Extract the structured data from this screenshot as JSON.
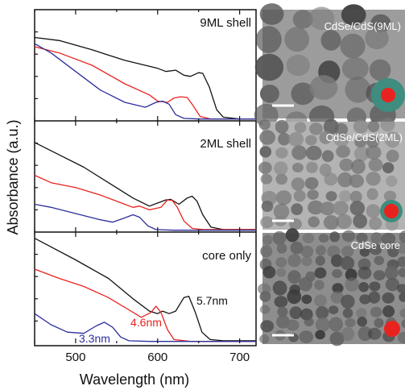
{
  "chart_data": {
    "type": "line",
    "xlabel": "Wavelength (nm)",
    "ylabel": "Absorbance (a.u.)",
    "xlim": [
      450,
      720
    ],
    "x_ticks": [
      500,
      600,
      700
    ],
    "colors": {
      "black": "#111111",
      "red": "#e8231f",
      "blue": "#2b2f9a"
    },
    "panels": [
      {
        "label": "9ML shell",
        "series": [
          {
            "color": "black",
            "points": [
              [
                450,
                1.35
              ],
              [
                480,
                1.3
              ],
              [
                520,
                1.15
              ],
              [
                560,
                0.98
              ],
              [
                600,
                0.85
              ],
              [
                610,
                0.8
              ],
              [
                622,
                0.82
              ],
              [
                632,
                0.74
              ],
              [
                640,
                0.72
              ],
              [
                650,
                0.78
              ],
              [
                655,
                0.77
              ],
              [
                663,
                0.55
              ],
              [
                672,
                0.18
              ],
              [
                680,
                0.06
              ],
              [
                700,
                0.03
              ],
              [
                720,
                0.03
              ]
            ]
          },
          {
            "color": "red",
            "points": [
              [
                450,
                1.2
              ],
              [
                480,
                1.1
              ],
              [
                520,
                0.9
              ],
              [
                560,
                0.6
              ],
              [
                590,
                0.42
              ],
              [
                600,
                0.32
              ],
              [
                612,
                0.3
              ],
              [
                620,
                0.37
              ],
              [
                628,
                0.39
              ],
              [
                636,
                0.38
              ],
              [
                643,
                0.25
              ],
              [
                652,
                0.07
              ],
              [
                665,
                0.03
              ],
              [
                720,
                0.03
              ]
            ]
          },
          {
            "color": "blue",
            "points": [
              [
                450,
                1.25
              ],
              [
                470,
                1.1
              ],
              [
                500,
                0.8
              ],
              [
                530,
                0.5
              ],
              [
                560,
                0.3
              ],
              [
                585,
                0.22
              ],
              [
                598,
                0.3
              ],
              [
                606,
                0.32
              ],
              [
                614,
                0.27
              ],
              [
                622,
                0.1
              ],
              [
                632,
                0.04
              ],
              [
                650,
                0.03
              ],
              [
                720,
                0.03
              ]
            ]
          }
        ]
      },
      {
        "label": "2ML shell",
        "series": [
          {
            "color": "black",
            "points": [
              [
                450,
                1.45
              ],
              [
                480,
                1.25
              ],
              [
                510,
                1.05
              ],
              [
                540,
                0.8
              ],
              [
                570,
                0.55
              ],
              [
                590,
                0.42
              ],
              [
                610,
                0.52
              ],
              [
                616,
                0.53
              ],
              [
                626,
                0.45
              ],
              [
                636,
                0.55
              ],
              [
                642,
                0.58
              ],
              [
                648,
                0.5
              ],
              [
                655,
                0.28
              ],
              [
                665,
                0.08
              ],
              [
                680,
                0.04
              ],
              [
                720,
                0.04
              ]
            ]
          },
          {
            "color": "red",
            "points": [
              [
                450,
                0.92
              ],
              [
                470,
                0.8
              ],
              [
                500,
                0.72
              ],
              [
                530,
                0.6
              ],
              [
                560,
                0.45
              ],
              [
                570,
                0.4
              ],
              [
                578,
                0.42
              ],
              [
                590,
                0.36
              ],
              [
                604,
                0.4
              ],
              [
                612,
                0.52
              ],
              [
                618,
                0.51
              ],
              [
                624,
                0.4
              ],
              [
                632,
                0.18
              ],
              [
                642,
                0.06
              ],
              [
                655,
                0.04
              ],
              [
                720,
                0.04
              ]
            ]
          },
          {
            "color": "blue",
            "points": [
              [
                450,
                0.45
              ],
              [
                470,
                0.4
              ],
              [
                500,
                0.3
              ],
              [
                530,
                0.2
              ],
              [
                545,
                0.16
              ],
              [
                558,
                0.22
              ],
              [
                570,
                0.28
              ],
              [
                578,
                0.24
              ],
              [
                588,
                0.1
              ],
              [
                598,
                0.04
              ],
              [
                620,
                0.03
              ],
              [
                720,
                0.03
              ]
            ]
          }
        ]
      },
      {
        "label": "core only",
        "series": [
          {
            "color": "black",
            "points": [
              [
                450,
                1.7
              ],
              [
                500,
                1.35
              ],
              [
                540,
                1.05
              ],
              [
                570,
                0.72
              ],
              [
                590,
                0.52
              ],
              [
                600,
                0.48
              ],
              [
                606,
                0.52
              ],
              [
                614,
                0.48
              ],
              [
                622,
                0.52
              ],
              [
                632,
                0.74
              ],
              [
                638,
                0.76
              ],
              [
                646,
                0.5
              ],
              [
                654,
                0.18
              ],
              [
                664,
                0.06
              ],
              [
                680,
                0.04
              ],
              [
                720,
                0.04
              ]
            ]
          },
          {
            "color": "red",
            "points": [
              [
                450,
                1.2
              ],
              [
                480,
                1.05
              ],
              [
                510,
                0.92
              ],
              [
                540,
                0.74
              ],
              [
                560,
                0.58
              ],
              [
                580,
                0.42
              ],
              [
                592,
                0.5
              ],
              [
                598,
                0.6
              ],
              [
                604,
                0.5
              ],
              [
                612,
                0.22
              ],
              [
                620,
                0.06
              ],
              [
                640,
                0.03
              ],
              [
                720,
                0.03
              ]
            ]
          },
          {
            "color": "blue",
            "points": [
              [
                450,
                0.48
              ],
              [
                470,
                0.3
              ],
              [
                490,
                0.18
              ],
              [
                510,
                0.16
              ],
              [
                525,
                0.28
              ],
              [
                535,
                0.34
              ],
              [
                545,
                0.26
              ],
              [
                555,
                0.1
              ],
              [
                565,
                0.04
              ],
              [
                590,
                0.03
              ],
              [
                720,
                0.03
              ]
            ]
          }
        ]
      }
    ],
    "annotations": [
      {
        "text": "5.7nm",
        "color": "black",
        "panel": 2
      },
      {
        "text": "4.6nm",
        "color": "red",
        "panel": 2
      },
      {
        "text": "3.3nm",
        "color": "blue",
        "panel": 2
      }
    ]
  },
  "images": [
    {
      "label": "CdSe/CdS(9ML)",
      "shell": true
    },
    {
      "label": "CdSe/CdS(2ML)",
      "shell": true
    },
    {
      "label": "CdSe core",
      "shell": false
    }
  ]
}
